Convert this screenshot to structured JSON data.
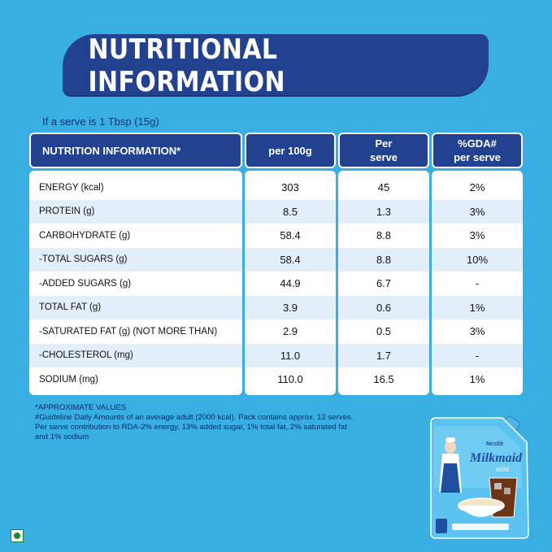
{
  "banner": {
    "title": "NUTRITIONAL INFORMATION"
  },
  "serve_note": "If a serve is 1 Tbsp (15g)",
  "table": {
    "headers": {
      "nutrient": "NUTRITION INFORMATION*",
      "per100g": "per 100g",
      "per_serve_line1": "Per",
      "per_serve_line2": "serve",
      "gda_line1": "%GDA#",
      "gda_line2": "per serve"
    },
    "rows": [
      {
        "name": "ENERGY (kcal)",
        "per100g": "303",
        "per_serve": "45",
        "gda": "2%"
      },
      {
        "name": "PROTEIN (g)",
        "per100g": "8.5",
        "per_serve": "1.3",
        "gda": "3%"
      },
      {
        "name": "CARBOHYDRATE (g)",
        "per100g": "58.4",
        "per_serve": "8.8",
        "gda": "3%"
      },
      {
        "name": "-TOTAL SUGARS (g)",
        "per100g": "58.4",
        "per_serve": "8.8",
        "gda": "10%"
      },
      {
        "name": "-ADDED SUGARS (g)",
        "per100g": "44.9",
        "per_serve": "6.7",
        "gda": "-"
      },
      {
        "name": "TOTAL FAT (g)",
        "per100g": "3.9",
        "per_serve": "0.6",
        "gda": "1%"
      },
      {
        "name": "-SATURATED FAT (g) (NOT MORE THAN)",
        "per100g": "2.9",
        "per_serve": "0.5",
        "gda": "3%"
      },
      {
        "name": "-CHOLESTEROL (mg)",
        "per100g": "11.0",
        "per_serve": "1.7",
        "gda": "-"
      },
      {
        "name": "SODIUM (mg)",
        "per100g": "110.0",
        "per_serve": "16.5",
        "gda": "1%"
      }
    ]
  },
  "footnotes": {
    "line1": "*APPROXIMATE VALUES",
    "line2": "#Guideline Daily Amounts of an average adult (2000 kcal). Pack contains approx. 12 serves.",
    "line3": " Per serve contribution to RDA-2% energy, 13% added sugar, 1% total fat, 2% saturated fat",
    "line4": "and 1% sodium"
  },
  "product": {
    "brand": "Nestlé",
    "name": "Milkmaid",
    "variant": "mini"
  },
  "colors": {
    "background": "#38aee3",
    "navy": "#22418e",
    "alt_row": "#e2eef9",
    "veg_green": "#1a8a2e"
  },
  "icons": {
    "veg_mark": "veg-symbol-icon"
  }
}
